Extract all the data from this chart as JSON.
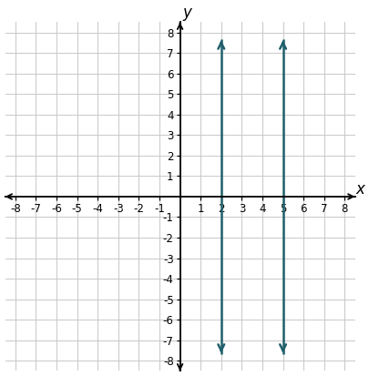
{
  "xlim": [
    -8.5,
    8.5
  ],
  "ylim": [
    -8.5,
    8.5
  ],
  "xlim_display": [
    -8,
    8
  ],
  "ylim_display": [
    -8,
    8
  ],
  "xticks": [
    -8,
    -7,
    -6,
    -5,
    -4,
    -3,
    -2,
    -1,
    1,
    2,
    3,
    4,
    5,
    6,
    7,
    8
  ],
  "yticks": [
    -8,
    -7,
    -6,
    -5,
    -4,
    -3,
    -2,
    -1,
    1,
    2,
    3,
    4,
    5,
    6,
    7,
    8
  ],
  "xlabel": "x",
  "ylabel": "y",
  "line_color": "#1F5F6B",
  "line_width": 1.8,
  "lines": [
    {
      "x": 2,
      "y_start": -7.7,
      "y_end": 7.7
    },
    {
      "x": 5,
      "y_start": -7.7,
      "y_end": 7.7
    }
  ],
  "grid_color": "#c8c8c8",
  "background_color": "#ffffff",
  "tick_label_fontsize": 8.5,
  "axis_label_fontsize": 12,
  "arrow_color": "#1F5F6B"
}
